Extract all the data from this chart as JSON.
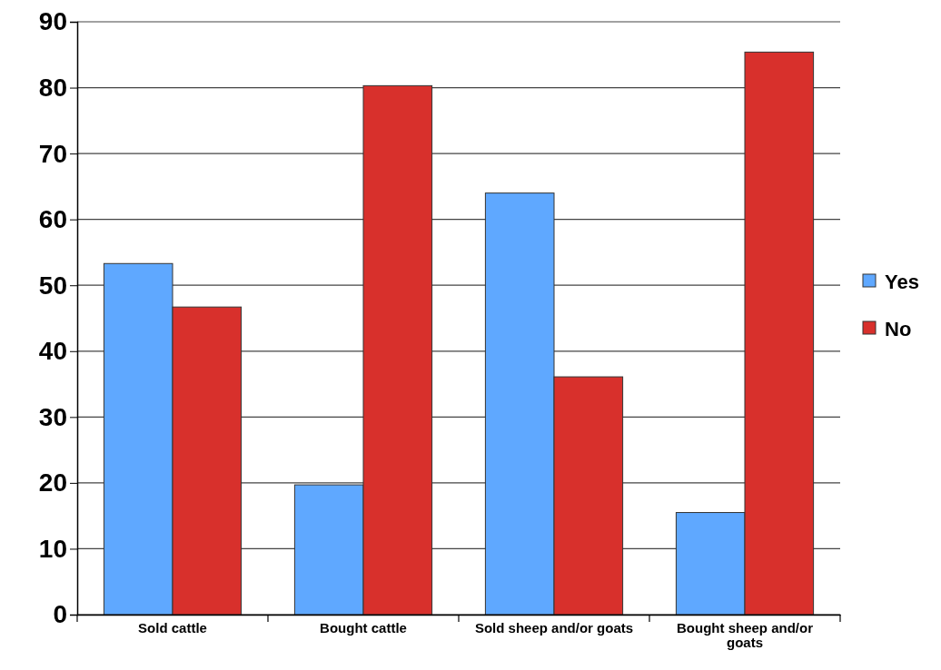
{
  "chart_data": {
    "type": "bar",
    "categories": [
      "Sold cattle",
      "Bought cattle",
      "Sold sheep and/or goats",
      "Bought sheep and/or goats"
    ],
    "series": [
      {
        "name": "Yes",
        "color": "#5fa8ff",
        "values": [
          53.3,
          19.7,
          64.0,
          15.5
        ]
      },
      {
        "name": "No",
        "color": "#d8302c",
        "values": [
          46.7,
          80.3,
          36.1,
          85.4
        ]
      }
    ],
    "ylim": [
      0,
      90
    ],
    "yticks": [
      0,
      10,
      20,
      30,
      40,
      50,
      60,
      70,
      80,
      90
    ],
    "grid": "y",
    "legend": "right"
  }
}
